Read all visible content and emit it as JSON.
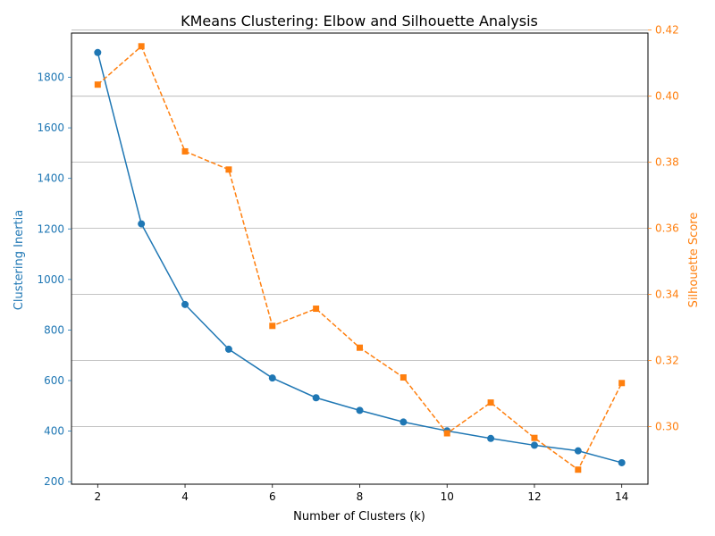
{
  "chart_data": {
    "type": "line",
    "title": "KMeans Clustering: Elbow and Silhouette Analysis",
    "xlabel": "Number of Clusters (k)",
    "ylabel_left": "Clustering Inertia",
    "ylabel_right": "Silhouette Score",
    "xlim": [
      1.4,
      14.6
    ],
    "x_ticks": [
      2,
      4,
      6,
      8,
      10,
      12,
      14
    ],
    "ylim_left": [
      190,
      1975
    ],
    "y_ticks_left": [
      200,
      400,
      600,
      800,
      1000,
      1200,
      1400,
      1600,
      1800
    ],
    "ylim_right": [
      0.2826,
      0.4191
    ],
    "y_ticks_right": [
      0.3,
      0.32,
      0.34,
      0.36,
      0.38,
      0.4,
      0.42
    ],
    "y_tick_labels_right": [
      "0.30",
      "0.32",
      "0.34",
      "0.36",
      "0.38",
      "0.40",
      "0.42"
    ],
    "grid": "horizontal lines at right-axis ticks",
    "x": [
      2,
      3,
      4,
      5,
      6,
      7,
      8,
      9,
      10,
      11,
      12,
      13,
      14
    ],
    "series": [
      {
        "axis": "left",
        "color": "#1f77b4",
        "marker": "circle",
        "line": "solid",
        "values": [
          1898,
          1220,
          901,
          724,
          610,
          532,
          482,
          436,
          401,
          371,
          344,
          322,
          275
        ]
      },
      {
        "axis": "right",
        "color": "#ff7f0e",
        "marker": "square",
        "line": "dashed",
        "values": [
          0.4035,
          0.4151,
          0.3833,
          0.3778,
          0.3305,
          0.3357,
          0.3239,
          0.3149,
          0.298,
          0.3073,
          0.2966,
          0.287,
          0.3132
        ]
      }
    ]
  }
}
